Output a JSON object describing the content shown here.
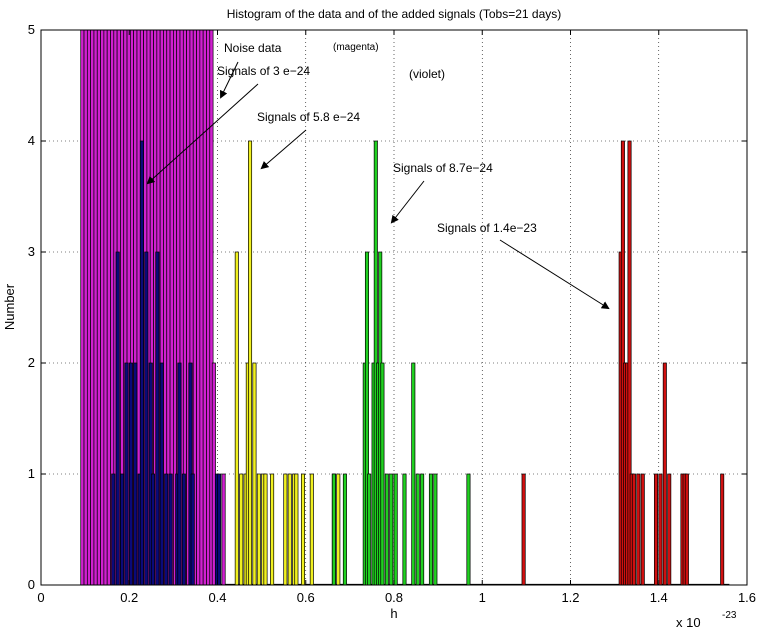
{
  "chart_data": {
    "type": "bar",
    "title": "Histogram of the data and of the added signals (Tobs=21 days)",
    "xlabel": "h",
    "ylabel": "Number",
    "x_multiplier": "x 10",
    "x_exponent": "-23",
    "xlim": [
      0,
      1.6
    ],
    "ylim": [
      0,
      5
    ],
    "xticks": [
      "0",
      "0.2",
      "0.4",
      "0.6",
      "0.8",
      "1",
      "1.2",
      "1.4",
      "1.6"
    ],
    "yticks": [
      "0",
      "1",
      "2",
      "3",
      "4",
      "5"
    ],
    "grid": true,
    "series": [
      {
        "color": "#d020d0",
        "bin_width": 0.0075,
        "x_start": 0.09,
        "x_end": 0.385,
        "value": 5,
        "extra_bars": [
          {
            "x": 0.388,
            "value": 2
          },
          {
            "x": 0.41,
            "value": 1
          }
        ]
      },
      {
        "color": "#0a0a7a",
        "bin_width": 0.0075,
        "bars": [
          [
            0.16,
            1
          ],
          [
            0.17,
            3
          ],
          [
            0.18,
            1
          ],
          [
            0.19,
            2
          ],
          [
            0.2,
            2
          ],
          [
            0.21,
            2
          ],
          [
            0.22,
            1
          ],
          [
            0.225,
            4
          ],
          [
            0.235,
            3
          ],
          [
            0.245,
            2
          ],
          [
            0.25,
            1
          ],
          [
            0.26,
            3
          ],
          [
            0.27,
            2
          ],
          [
            0.28,
            1
          ],
          [
            0.29,
            1
          ],
          [
            0.305,
            1
          ],
          [
            0.31,
            2
          ],
          [
            0.32,
            1
          ],
          [
            0.335,
            2
          ],
          [
            0.34,
            1
          ],
          [
            0.395,
            1
          ],
          [
            0.4,
            1
          ]
        ]
      },
      {
        "color": "#f0f020",
        "bin_width": 0.0075,
        "bars": [
          [
            0.44,
            3
          ],
          [
            0.45,
            1
          ],
          [
            0.46,
            1
          ],
          [
            0.465,
            2
          ],
          [
            0.47,
            4
          ],
          [
            0.48,
            2
          ],
          [
            0.49,
            1
          ],
          [
            0.5,
            1
          ],
          [
            0.505,
            1
          ],
          [
            0.52,
            1
          ],
          [
            0.55,
            1
          ],
          [
            0.56,
            1
          ],
          [
            0.57,
            1
          ],
          [
            0.575,
            1
          ],
          [
            0.59,
            1
          ],
          [
            0.61,
            1
          ],
          [
            0.66,
            1
          ],
          [
            0.67,
            1
          ]
        ]
      },
      {
        "color": "#20d020",
        "bin_width": 0.0075,
        "bars": [
          [
            0.66,
            1
          ],
          [
            0.685,
            1
          ],
          [
            0.73,
            2
          ],
          [
            0.735,
            3
          ],
          [
            0.74,
            1
          ],
          [
            0.75,
            2
          ],
          [
            0.755,
            4
          ],
          [
            0.76,
            2
          ],
          [
            0.765,
            3
          ],
          [
            0.77,
            2
          ],
          [
            0.78,
            1
          ],
          [
            0.79,
            1
          ],
          [
            0.8,
            1
          ],
          [
            0.82,
            1
          ],
          [
            0.84,
            2
          ],
          [
            0.85,
            1
          ],
          [
            0.86,
            1
          ],
          [
            0.88,
            1
          ],
          [
            0.89,
            1
          ],
          [
            0.965,
            1
          ]
        ]
      },
      {
        "color": "#d01010",
        "bin_width": 0.0075,
        "bars": [
          [
            1.09,
            1
          ],
          [
            1.31,
            3
          ],
          [
            1.315,
            4
          ],
          [
            1.32,
            2
          ],
          [
            1.325,
            2
          ],
          [
            1.33,
            4
          ],
          [
            1.335,
            1
          ],
          [
            1.34,
            1
          ],
          [
            1.35,
            1
          ],
          [
            1.36,
            1
          ],
          [
            1.39,
            1
          ],
          [
            1.4,
            1
          ],
          [
            1.41,
            2
          ],
          [
            1.42,
            1
          ],
          [
            1.45,
            1
          ],
          [
            1.455,
            1
          ],
          [
            1.46,
            1
          ],
          [
            1.54,
            1
          ]
        ]
      }
    ],
    "annotations": [
      {
        "text": "Noise data"
      },
      {
        "text": "(magenta)"
      },
      {
        "text": "Signals of 3 e−24"
      },
      {
        "text": "(violet)"
      },
      {
        "text": "Signals of 5.8 e−24"
      },
      {
        "text": "Signals of 8.7e−24"
      },
      {
        "text": "Signals of  1.4e−23"
      }
    ]
  }
}
